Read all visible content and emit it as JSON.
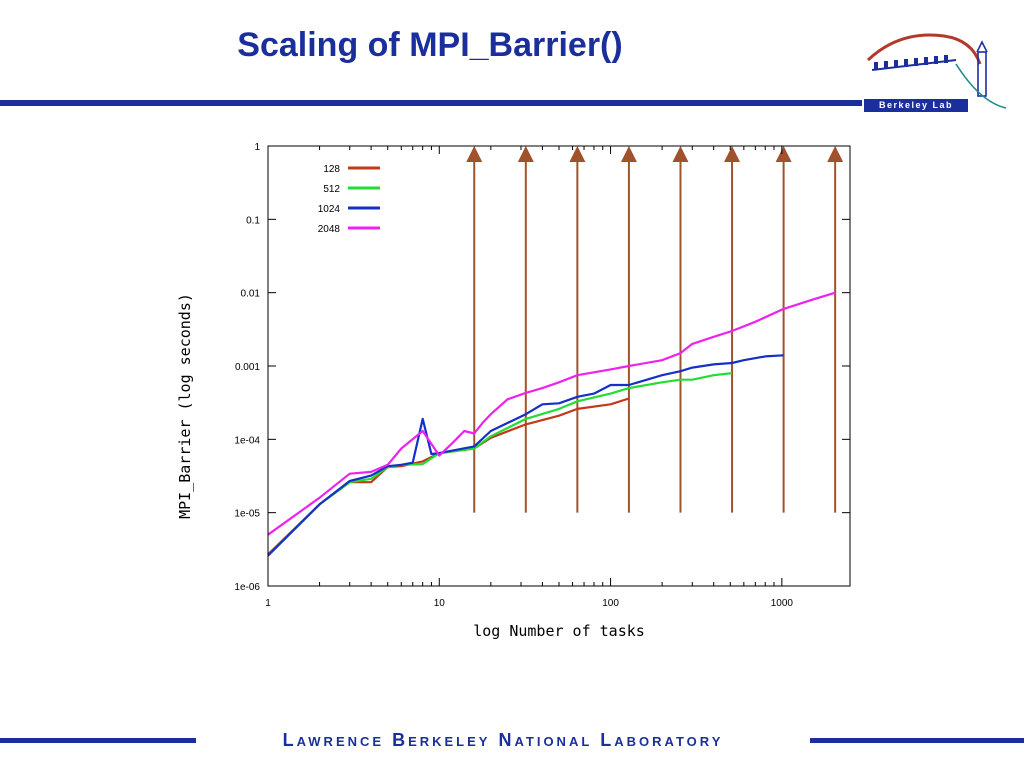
{
  "slide": {
    "title": "Scaling of MPI_Barrier()",
    "logo_text": "Berkeley Lab",
    "footer": "Lawrence Berkeley National Laboratory"
  },
  "colors": {
    "brand": "#1b2f9c",
    "marker": "#a0522d"
  },
  "chart_data": {
    "type": "line",
    "title": "",
    "xlabel": "log Number of tasks",
    "ylabel": "MPI_Barrier (log seconds)",
    "x_scale": "log",
    "y_scale": "log",
    "xlim": [
      1,
      2500
    ],
    "ylim": [
      1e-06,
      1
    ],
    "x_ticks": [
      "1",
      "10",
      "100",
      "1000"
    ],
    "y_ticks": [
      "1e-06",
      "1e-05",
      "1e-04",
      "0.001",
      "0.01",
      "0.1",
      "1"
    ],
    "legend_position": "top-left",
    "grid": false,
    "series": [
      {
        "name": "128",
        "color": "#c0391b",
        "x": [
          1,
          2,
          3,
          4,
          5,
          6,
          8,
          10,
          16,
          20,
          32,
          50,
          64,
          100,
          128
        ],
        "y": [
          2.7e-06,
          1.3e-05,
          2.6e-05,
          2.6e-05,
          4.2e-05,
          4.3e-05,
          5e-05,
          6.5e-05,
          7.5e-05,
          0.000105,
          0.00016,
          0.00021,
          0.00026,
          0.0003,
          0.00036
        ]
      },
      {
        "name": "512",
        "color": "#22dd33",
        "x": [
          1,
          2,
          3,
          4,
          5,
          6,
          8,
          10,
          16,
          20,
          32,
          50,
          64,
          100,
          128,
          200,
          256,
          300,
          400,
          512
        ],
        "y": [
          2.6e-06,
          1.3e-05,
          2.6e-05,
          2.9e-05,
          4.2e-05,
          4.5e-05,
          4.6e-05,
          6.5e-05,
          7.5e-05,
          0.00011,
          0.00019,
          0.00026,
          0.00033,
          0.00042,
          0.0005,
          0.0006,
          0.00065,
          0.00065,
          0.00075,
          0.0008
        ]
      },
      {
        "name": "1024",
        "color": "#1530c8",
        "x": [
          1,
          2,
          3,
          4,
          5,
          6,
          7,
          8,
          9,
          10,
          16,
          20,
          32,
          40,
          50,
          64,
          80,
          100,
          128,
          200,
          256,
          300,
          400,
          512,
          600,
          800,
          1024
        ],
        "y": [
          2.6e-06,
          1.3e-05,
          2.7e-05,
          3.2e-05,
          4.3e-05,
          4.5e-05,
          4.8e-05,
          0.00019,
          6.3e-05,
          6.5e-05,
          8e-05,
          0.00013,
          0.00022,
          0.0003,
          0.00031,
          0.00038,
          0.00042,
          0.00055,
          0.00055,
          0.00075,
          0.00085,
          0.00095,
          0.00105,
          0.0011,
          0.0012,
          0.00135,
          0.0014
        ]
      },
      {
        "name": "2048",
        "color": "#ee22ee",
        "x": [
          1,
          2,
          3,
          4,
          5,
          6,
          8,
          10,
          12,
          14,
          16,
          18,
          20,
          25,
          32,
          40,
          50,
          64,
          100,
          128,
          200,
          256,
          300,
          400,
          512,
          700,
          1024,
          1500,
          2048
        ],
        "y": [
          5e-06,
          1.6e-05,
          3.4e-05,
          3.6e-05,
          4.5e-05,
          7.5e-05,
          0.00013,
          6e-05,
          9e-05,
          0.00013,
          0.00012,
          0.00017,
          0.00022,
          0.00035,
          0.00043,
          0.0005,
          0.0006,
          0.00075,
          0.0009,
          0.001,
          0.0012,
          0.0015,
          0.002,
          0.0025,
          0.003,
          0.004,
          0.006,
          0.008,
          0.01
        ]
      }
    ],
    "markers": {
      "description": "vertical arrows at power-of-two task counts",
      "x": [
        16,
        32,
        64,
        128,
        256,
        512,
        1024,
        2048
      ],
      "from_y": 1e-05,
      "to_y": 1
    }
  }
}
